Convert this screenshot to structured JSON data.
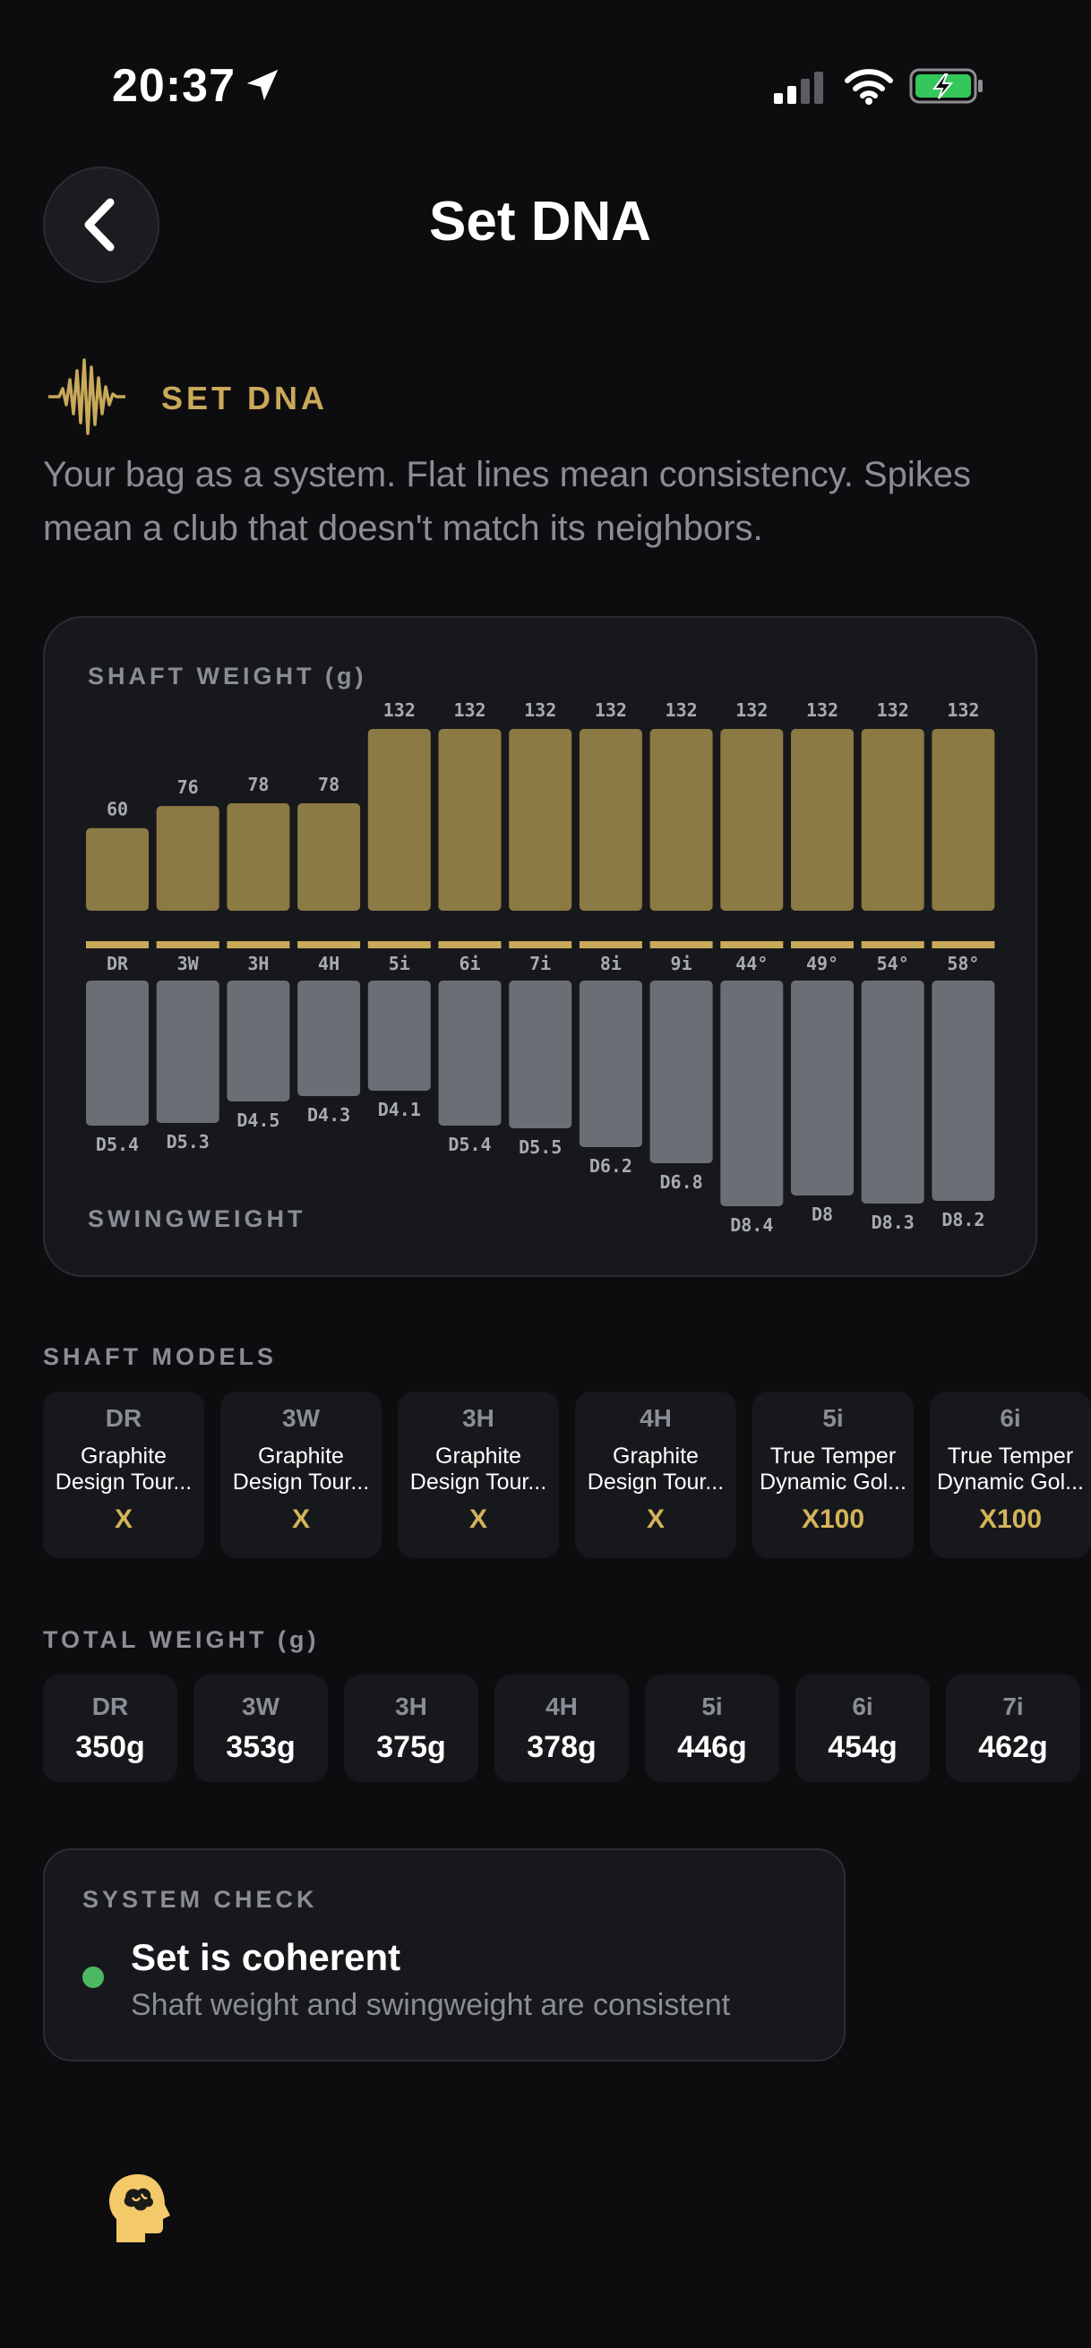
{
  "status_bar": {
    "time": "20:37",
    "icons": [
      "location-arrow-icon",
      "cellular-signal-icon",
      "wifi-icon",
      "battery-charging-icon"
    ],
    "battery_color": "#34c759"
  },
  "header": {
    "title": "Set DNA",
    "back_icon": "chevron-left-icon"
  },
  "intro": {
    "kicker": "SET DNA",
    "kicker_icon": "waveform-icon",
    "description": "Your bag as a system. Flat lines mean consistency. Spikes mean a club that doesn't match its neighbors."
  },
  "colors": {
    "accent_gold": "#c9a95a",
    "bar_gold": "#8c7a44",
    "bar_gray": "#6b6e75",
    "status_green": "#4cb85f"
  },
  "chart": {
    "top_label": "SHAFT WEIGHT (g)",
    "bottom_label": "SWINGWEIGHT"
  },
  "chart_data": {
    "type": "bar",
    "categories": [
      "DR",
      "3W",
      "3H",
      "4H",
      "5i",
      "6i",
      "7i",
      "8i",
      "9i",
      "44°",
      "49°",
      "54°",
      "58°"
    ],
    "series": [
      {
        "name": "SHAFT WEIGHT (g)",
        "values": [
          60,
          76,
          78,
          78,
          132,
          132,
          132,
          132,
          132,
          132,
          132,
          132,
          132
        ],
        "labels": [
          "60",
          "76",
          "78",
          "78",
          "132",
          "132",
          "132",
          "132",
          "132",
          "132",
          "132",
          "132",
          "132"
        ]
      },
      {
        "name": "SWINGWEIGHT",
        "values": [
          5.4,
          5.3,
          4.5,
          4.3,
          4.1,
          5.4,
          5.5,
          6.2,
          6.8,
          8.4,
          8.0,
          8.3,
          8.2
        ],
        "labels": [
          "D5.4",
          "D5.3",
          "D4.5",
          "D4.3",
          "D4.1",
          "D5.4",
          "D5.5",
          "D6.2",
          "D6.8",
          "D8.4",
          "D8",
          "D8.3",
          "D8.2"
        ]
      }
    ],
    "shaft_weight_range": [
      0,
      132
    ],
    "swingweight_range": [
      0,
      8.4
    ]
  },
  "shaft_models": {
    "label": "SHAFT MODELS",
    "items": [
      {
        "club": "DR",
        "line1": "Graphite",
        "line2": "Design Tour...",
        "flex": "X"
      },
      {
        "club": "3W",
        "line1": "Graphite",
        "line2": "Design Tour...",
        "flex": "X"
      },
      {
        "club": "3H",
        "line1": "Graphite",
        "line2": "Design Tour...",
        "flex": "X"
      },
      {
        "club": "4H",
        "line1": "Graphite",
        "line2": "Design Tour...",
        "flex": "X"
      },
      {
        "club": "5i",
        "line1": "True Temper",
        "line2": "Dynamic Gol...",
        "flex": "X100"
      },
      {
        "club": "6i",
        "line1": "True Temper",
        "line2": "Dynamic Gol...",
        "flex": "X100"
      }
    ]
  },
  "total_weight": {
    "label": "TOTAL WEIGHT (g)",
    "items": [
      {
        "club": "DR",
        "value": "350g"
      },
      {
        "club": "3W",
        "value": "353g"
      },
      {
        "club": "3H",
        "value": "375g"
      },
      {
        "club": "4H",
        "value": "378g"
      },
      {
        "club": "5i",
        "value": "446g"
      },
      {
        "club": "6i",
        "value": "454g"
      },
      {
        "club": "7i",
        "value": "462g"
      }
    ]
  },
  "system_check": {
    "label": "SYSTEM CHECK",
    "title": "Set is coherent",
    "subtitle": "Shaft weight and swingweight are consistent",
    "status_icon": "status-dot-icon"
  },
  "footer": {
    "icon": "brain-head-icon"
  }
}
